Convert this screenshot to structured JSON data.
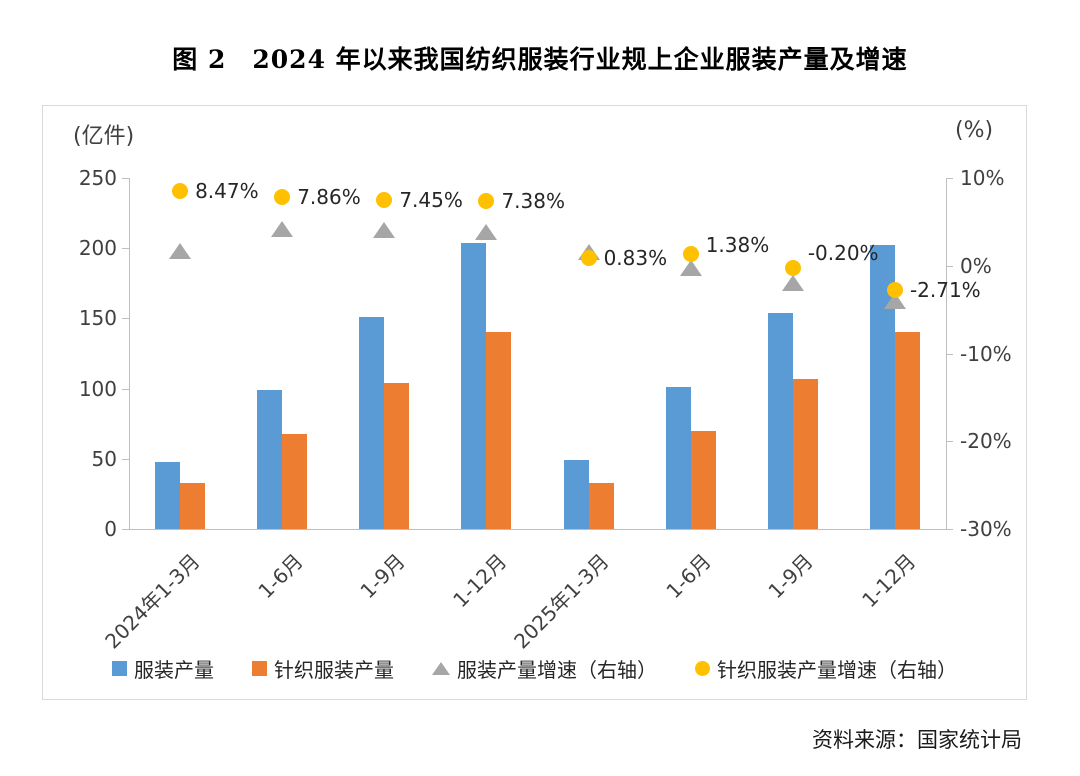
{
  "page": {
    "title": "图 2　2024 年以来我国纺织服装行业规上企业服装产量及增速",
    "source": "资料来源：国家统计局"
  },
  "chart_data": {
    "type": "bar",
    "subtype": "combo-bar-and-scatter-dual-axis",
    "title": "图 2 2024 年以来我国纺织服装行业规上企业服装产量及增速",
    "grid": false,
    "legend_position": "bottom",
    "categories": [
      "2024年1-3月",
      "1-6月",
      "1-9月",
      "1-12月",
      "2025年1-3月",
      "1-6月",
      "1-9月",
      "1-12月"
    ],
    "left_axis": {
      "unit": "(亿件)",
      "min": 0,
      "max": 250,
      "ticks": [
        {
          "label": "250",
          "value": 250
        },
        {
          "label": "200",
          "value": 200
        },
        {
          "label": "150",
          "value": 150
        },
        {
          "label": "100",
          "value": 100
        },
        {
          "label": "50",
          "value": 50
        },
        {
          "label": "0",
          "value": 0
        }
      ]
    },
    "right_axis": {
      "unit": "(%)",
      "min": -30,
      "max": 10,
      "ticks": [
        {
          "label": "10%",
          "value": 10
        },
        {
          "label": "0%",
          "value": 0
        },
        {
          "label": "-10%",
          "value": -10
        },
        {
          "label": "-20%",
          "value": -20
        },
        {
          "label": "-30%",
          "value": -30
        }
      ]
    },
    "series": [
      {
        "name": "服装产量",
        "kind": "bar",
        "axis": "left",
        "color": "#5b9bd5",
        "values": [
          48,
          99,
          151,
          204,
          49,
          101,
          154,
          202
        ]
      },
      {
        "name": "针织服装产量",
        "kind": "bar",
        "axis": "left",
        "color": "#ed7d31",
        "values": [
          33,
          68,
          104,
          140,
          33,
          70,
          107,
          140
        ]
      },
      {
        "name": "服装产量增速（右轴）",
        "kind": "scatter",
        "marker": "triangle",
        "axis": "right",
        "color": "#a6a6a6",
        "values": [
          1.7,
          4.2,
          4.1,
          3.9,
          1.6,
          -0.3,
          -2.0,
          -4.0
        ]
      },
      {
        "name": "针织服装产量增速（右轴）",
        "kind": "scatter",
        "marker": "circle",
        "axis": "right",
        "color": "#ffc000",
        "values": [
          8.47,
          7.86,
          7.45,
          7.38,
          0.83,
          1.38,
          -0.2,
          -2.71
        ],
        "labels": [
          "8.47%",
          "7.86%",
          "7.45%",
          "7.38%",
          "0.83%",
          "1.38%",
          "-0.20%",
          "-2.71%"
        ]
      }
    ],
    "legend": [
      {
        "label": "服装产量",
        "marker": "square",
        "color": "#5b9bd5"
      },
      {
        "label": "针织服装产量",
        "marker": "square",
        "color": "#ed7d31"
      },
      {
        "label": "服装产量增速（右轴）",
        "marker": "triangle",
        "color": "#a6a6a6"
      },
      {
        "label": "针织服装产量增速（右轴）",
        "marker": "circle",
        "color": "#ffc000"
      }
    ]
  }
}
